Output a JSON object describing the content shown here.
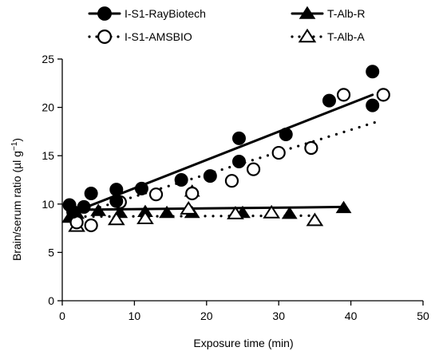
{
  "chart_data": {
    "type": "scatter",
    "title": "",
    "xlabel": "Exposure time (min)",
    "ylabel_main": "Brain/serum ratio (µl g",
    "ylabel_sup": "−1",
    "ylabel_close": ")",
    "xlim": [
      0,
      50
    ],
    "ylim": [
      0,
      25
    ],
    "x_ticks": [
      0,
      10,
      20,
      30,
      40,
      50
    ],
    "y_ticks": [
      0,
      5,
      10,
      15,
      20,
      25
    ],
    "grid": false,
    "legend_position": "top",
    "series": [
      {
        "name": "I-S1-RayBiotech",
        "marker": "filled-circle",
        "line": "solid",
        "color": "#000000",
        "points": [
          [
            1,
            9.9
          ],
          [
            1.5,
            9.2
          ],
          [
            3,
            9.7
          ],
          [
            4,
            11.1
          ],
          [
            7.5,
            11.5
          ],
          [
            7.5,
            10.3
          ],
          [
            11,
            11.6
          ],
          [
            16.5,
            12.5
          ],
          [
            20.5,
            12.9
          ],
          [
            24.5,
            16.8
          ],
          [
            24.5,
            14.4
          ],
          [
            31,
            17.2
          ],
          [
            37,
            20.7
          ],
          [
            43,
            23.7
          ],
          [
            43,
            20.2
          ]
        ],
        "fit": [
          [
            1,
            9.0
          ],
          [
            43,
            21.3
          ]
        ]
      },
      {
        "name": "I-S1-AMSBIO",
        "marker": "open-circle",
        "line": "dotted",
        "color": "#000000",
        "points": [
          [
            2,
            8.1
          ],
          [
            4,
            7.8
          ],
          [
            8,
            10.2
          ],
          [
            13,
            11.0
          ],
          [
            18,
            11.1
          ],
          [
            23.5,
            12.4
          ],
          [
            26.5,
            13.6
          ],
          [
            30,
            15.3
          ],
          [
            34.5,
            15.8
          ],
          [
            39,
            21.3
          ],
          [
            44.5,
            21.3
          ]
        ],
        "fit": [
          [
            1,
            8.7
          ],
          [
            44,
            18.6
          ]
        ]
      },
      {
        "name": "T-Alb-R",
        "marker": "filled-triangle",
        "line": "solid",
        "color": "#000000",
        "points": [
          [
            1,
            8.6
          ],
          [
            2,
            9.0
          ],
          [
            5,
            9.3
          ],
          [
            8,
            9.1
          ],
          [
            11.5,
            9.2
          ],
          [
            14.5,
            9.1
          ],
          [
            18,
            9.1
          ],
          [
            18,
            11.3
          ],
          [
            25,
            9.1
          ],
          [
            31.5,
            9.0
          ],
          [
            39,
            9.6
          ]
        ],
        "fit": [
          [
            1,
            9.4
          ],
          [
            39,
            9.7
          ]
        ]
      },
      {
        "name": "T-Alb-A",
        "marker": "open-triangle",
        "line": "dotted",
        "color": "#000000",
        "points": [
          [
            2,
            7.7
          ],
          [
            7.5,
            8.4
          ],
          [
            11.5,
            8.5
          ],
          [
            17.5,
            9.5
          ],
          [
            24,
            9.0
          ],
          [
            29,
            9.1
          ],
          [
            35,
            8.3
          ]
        ],
        "fit": [
          [
            1,
            8.7
          ],
          [
            35,
            8.8
          ]
        ]
      }
    ]
  }
}
